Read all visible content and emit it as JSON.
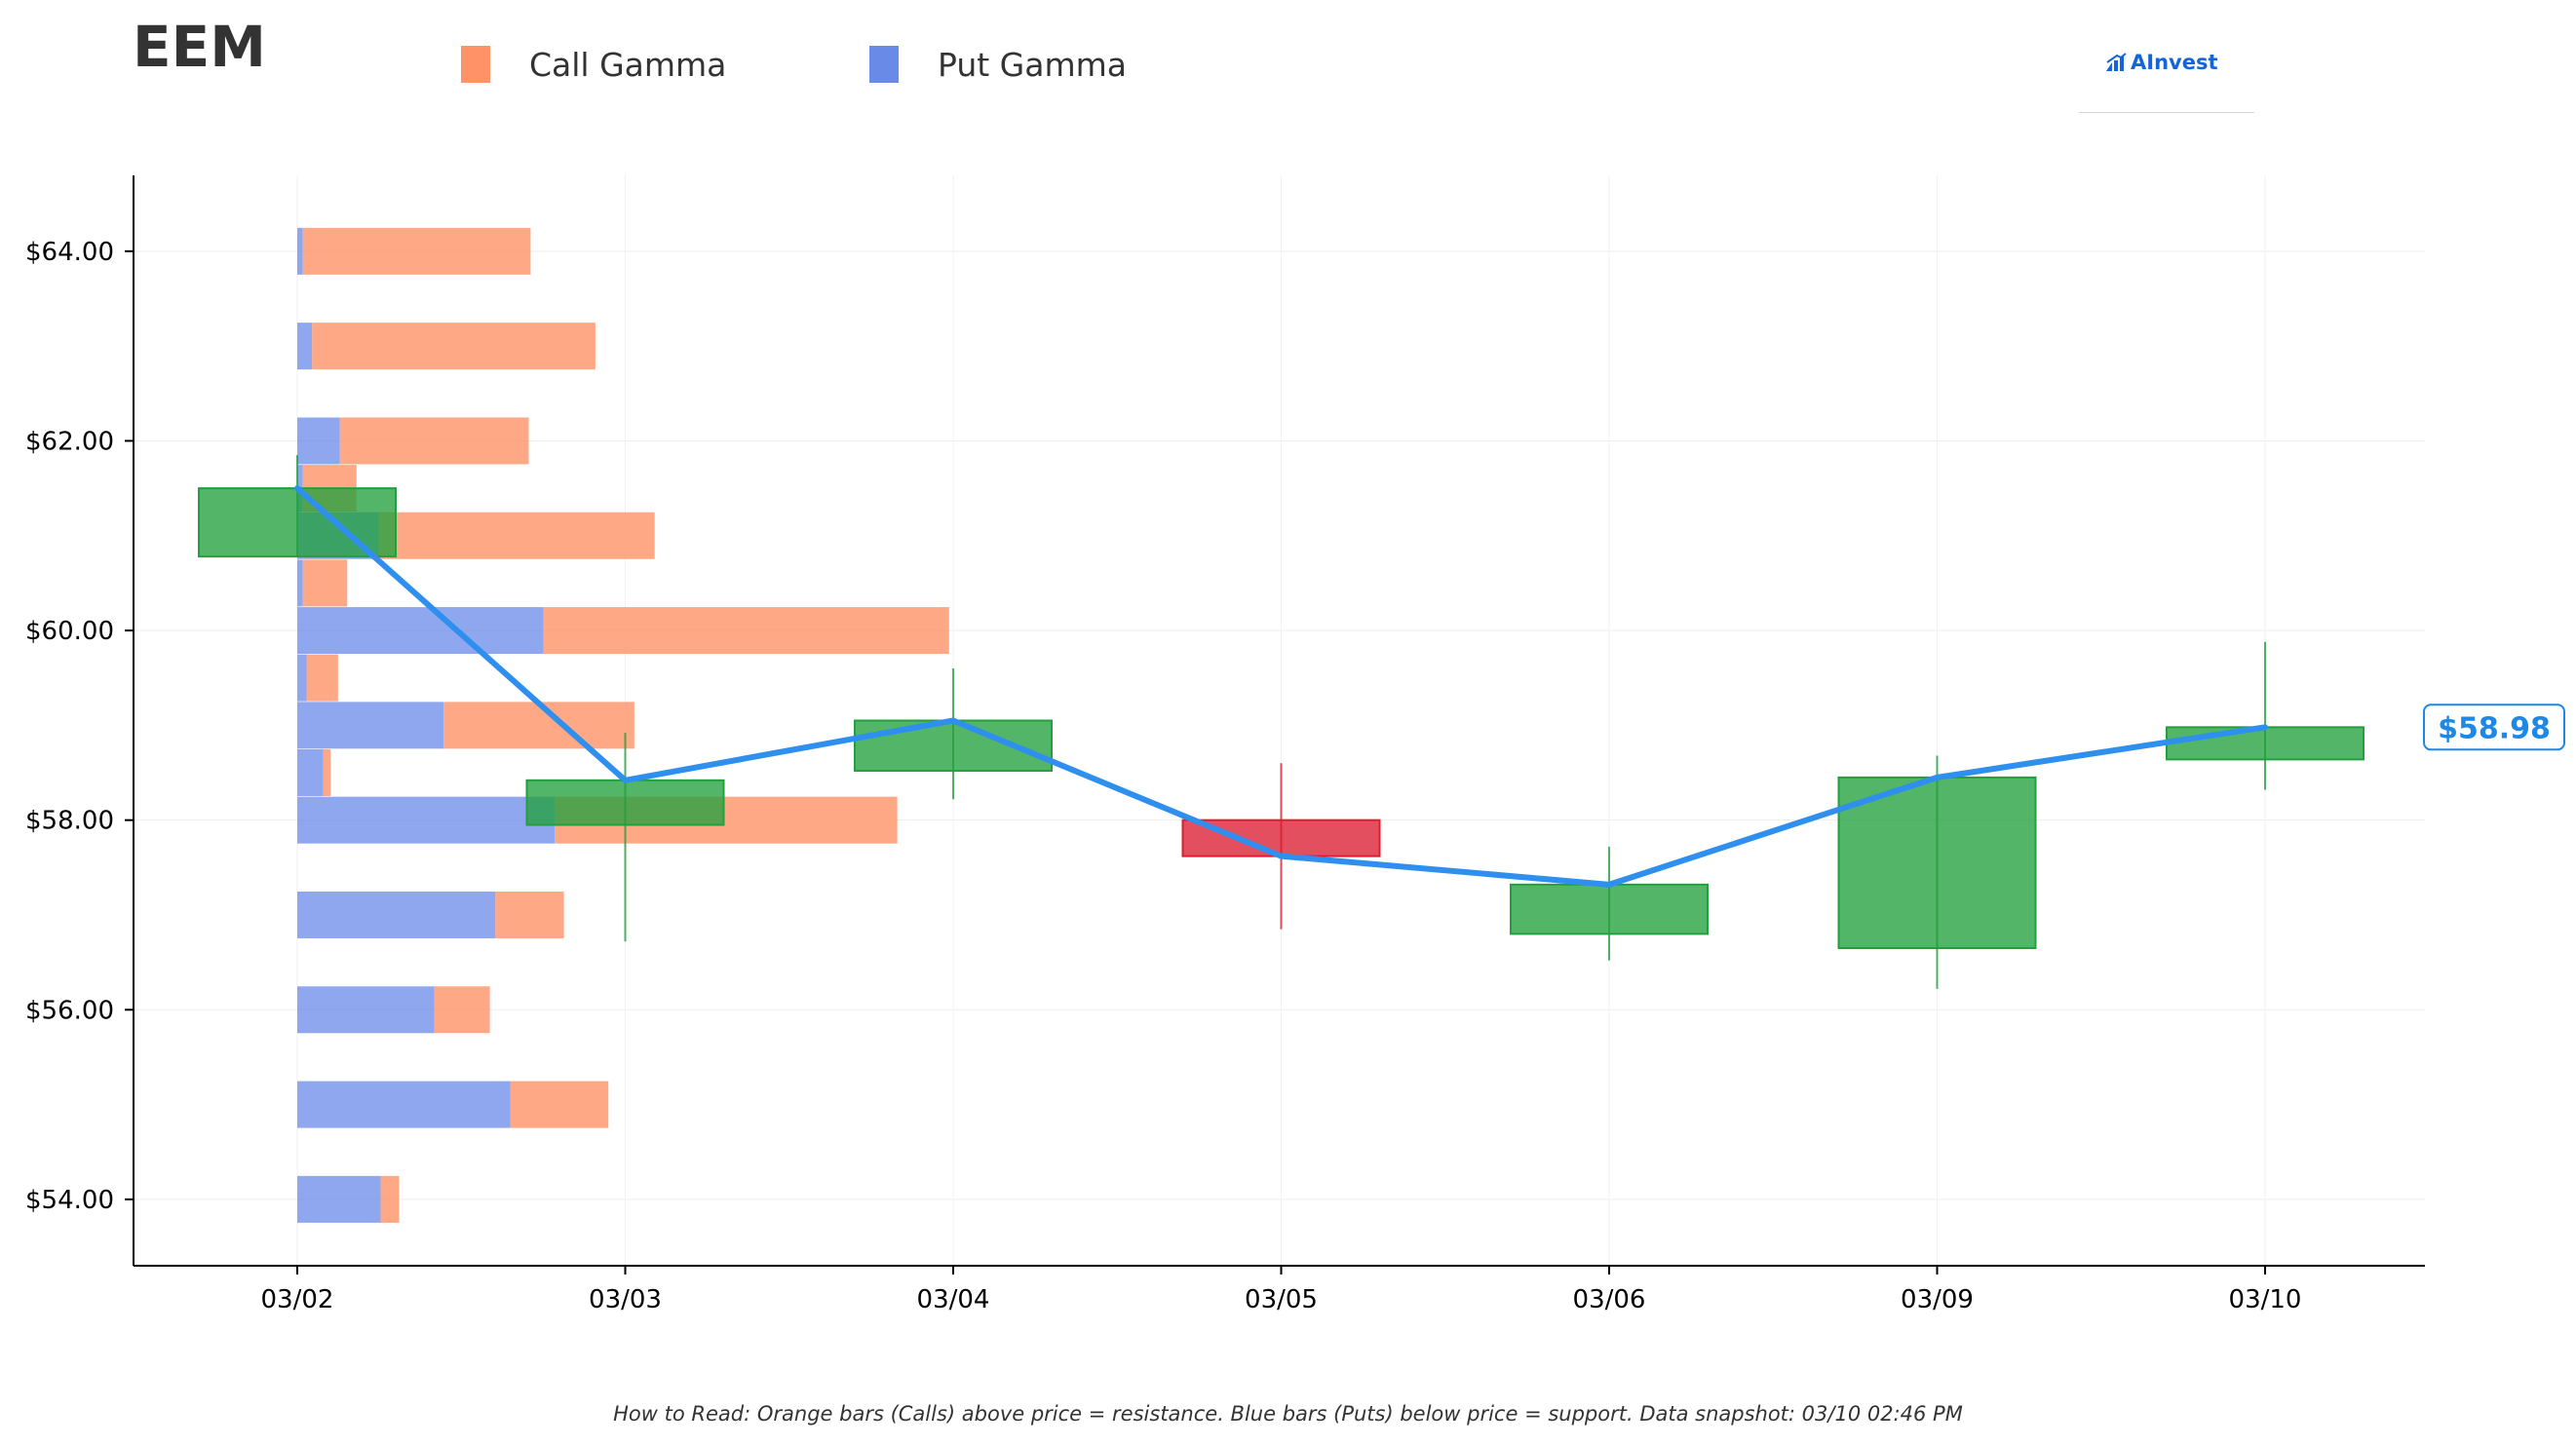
{
  "header": {
    "ticker": "EEM",
    "brand": "AInvest"
  },
  "legend": {
    "call_label": "Call Gamma",
    "put_label": "Put Gamma"
  },
  "colors": {
    "call": "#ff9266",
    "put": "#6a8ae8",
    "up_candle": "#22a03e",
    "down_candle": "#db1e32",
    "price_line": "#2f8fee",
    "price_tag": "#1e88e5",
    "brand": "#1565d8"
  },
  "footnote": "How to Read: Orange bars (Calls) above price = resistance. Blue bars (Puts) below price = support. Data snapshot: 03/10 02:46 PM",
  "chart_data": {
    "type": "candlestick",
    "title": "EEM",
    "x_categories": [
      "03/02",
      "03/03",
      "03/04",
      "03/05",
      "03/06",
      "03/09",
      "03/10"
    ],
    "y_ticks": [
      "$54.00",
      "$56.00",
      "$58.00",
      "$60.00",
      "$62.00",
      "$64.00"
    ],
    "y_tick_values": [
      54,
      56,
      58,
      60,
      62,
      64
    ],
    "ylim": [
      53.3,
      64.8
    ],
    "grid": true,
    "legend_position": "top",
    "candles": [
      {
        "date": "03/02",
        "open": 60.78,
        "high": 61.85,
        "low": 60.78,
        "close": 61.5
      },
      {
        "date": "03/03",
        "open": 57.95,
        "high": 58.92,
        "low": 56.72,
        "close": 58.42
      },
      {
        "date": "03/04",
        "open": 58.52,
        "high": 59.6,
        "low": 58.22,
        "close": 59.05
      },
      {
        "date": "03/05",
        "open": 58.0,
        "high": 58.6,
        "low": 56.85,
        "close": 57.62
      },
      {
        "date": "03/06",
        "open": 56.8,
        "high": 57.72,
        "low": 56.52,
        "close": 57.32
      },
      {
        "date": "03/09",
        "open": 56.65,
        "high": 58.68,
        "low": 56.22,
        "close": 58.45
      },
      {
        "date": "03/10",
        "open": 58.64,
        "high": 59.88,
        "low": 58.32,
        "close": 58.98
      }
    ],
    "last_price_label": "$58.98",
    "gamma_strikes": [
      64,
      63,
      62,
      61.5,
      61,
      60.5,
      60,
      59.5,
      59,
      58.5,
      58,
      57,
      56,
      55,
      54
    ],
    "put_gamma": [
      0.03,
      0.08,
      0.23,
      0.03,
      0.44,
      0.03,
      1.33,
      0.05,
      0.79,
      0.14,
      1.39,
      1.07,
      0.74,
      1.15,
      0.45
    ],
    "call_gamma": [
      1.23,
      1.53,
      1.02,
      0.29,
      1.49,
      0.24,
      2.19,
      0.17,
      1.03,
      0.04,
      1.85,
      0.37,
      0.3,
      0.53,
      0.1
    ],
    "price_line": {
      "x": [
        "03/02",
        "03/03",
        "03/04",
        "03/05",
        "03/06",
        "03/09",
        "03/10"
      ],
      "y": [
        61.5,
        58.42,
        59.05,
        57.62,
        57.32,
        58.45,
        58.98
      ]
    }
  }
}
